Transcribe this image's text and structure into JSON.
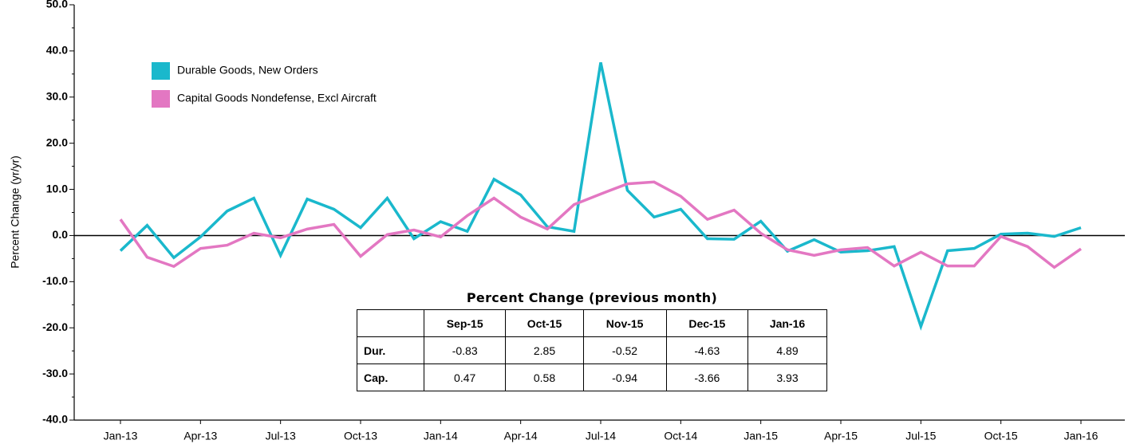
{
  "chart_data": {
    "type": "line",
    "y_label": "Percent Change (yr/yr)",
    "categories": [
      "Jan-13",
      null,
      null,
      "Apr-13",
      null,
      null,
      "Jul-13",
      null,
      null,
      "Oct-13",
      null,
      null,
      "Jan-14",
      null,
      null,
      "Apr-14",
      null,
      null,
      "Jul-14",
      null,
      null,
      "Oct-14",
      null,
      null,
      "Jan-15",
      null,
      null,
      "Apr-15",
      null,
      null,
      "Jul-15",
      null,
      null,
      "Oct-15",
      null,
      null,
      "Jan-16"
    ],
    "series": [
      {
        "name": "Durable Goods, New Orders",
        "color": "#1ab8cc",
        "values": [
          -3.3,
          2.2,
          -4.8,
          -0.3,
          5.3,
          8.1,
          -4.3,
          7.9,
          5.7,
          1.7,
          8.1,
          -0.7,
          3.0,
          0.9,
          12.2,
          8.8,
          1.9,
          0.9,
          37.5,
          9.8,
          4.0,
          5.7,
          -0.7,
          -0.8,
          3.1,
          -3.4,
          -0.9,
          -3.6,
          -3.3,
          -2.4,
          -19.7,
          -3.3,
          -2.8,
          0.3,
          0.5,
          -0.2,
          1.7
        ]
      },
      {
        "name": "Capital Goods Nondefense, Excl Aircraft",
        "color": "#e377c2",
        "values": [
          3.5,
          -4.7,
          -6.7,
          -2.8,
          -2.1,
          0.5,
          -0.5,
          1.4,
          2.4,
          -4.5,
          0.2,
          1.2,
          -0.3,
          4.3,
          8.1,
          4.0,
          1.4,
          6.7,
          9.0,
          11.2,
          11.6,
          8.5,
          3.5,
          5.5,
          0.5,
          -3.1,
          -4.3,
          -3.1,
          -2.6,
          -6.6,
          -3.6,
          -6.6,
          -6.6,
          -0.2,
          -2.4,
          -6.9,
          -2.9
        ]
      }
    ],
    "ylim": [
      -40,
      50
    ],
    "yticks": [
      {
        "value": -40,
        "label": "-40.0"
      },
      {
        "value": -30,
        "label": "-30.0"
      },
      {
        "value": -20,
        "label": "-20.0"
      },
      {
        "value": -10,
        "label": "-10.0"
      },
      {
        "value": 0,
        "label": "0.0"
      },
      {
        "value": 10,
        "label": "10.0"
      },
      {
        "value": 20,
        "label": "20.0"
      },
      {
        "value": 30,
        "label": "30.0"
      },
      {
        "value": 40,
        "label": "40.0"
      },
      {
        "value": 50,
        "label": "50.0"
      }
    ],
    "legend": "upper left",
    "table": {
      "title": "Percent Change (previous month)",
      "columns": [
        "Sep-15",
        "Oct-15",
        "Nov-15",
        "Dec-15",
        "Jan-16"
      ],
      "rows": [
        {
          "label": "Dur.",
          "values": [
            -0.83,
            2.85,
            -0.52,
            -4.63,
            4.89
          ]
        },
        {
          "label": "Cap.",
          "values": [
            0.47,
            0.58,
            -0.94,
            -3.66,
            3.93
          ]
        }
      ]
    }
  }
}
